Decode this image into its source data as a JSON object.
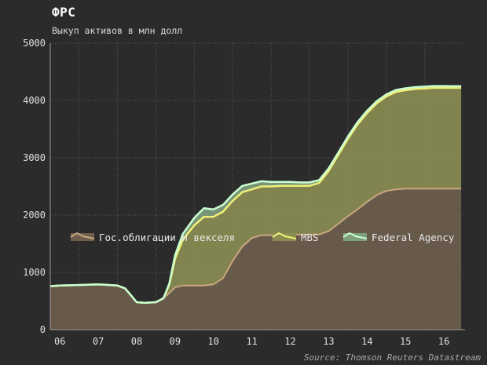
{
  "title": "ФРС",
  "subtitle": "Выкуп активов в млн долл",
  "source": "Source: Thomson Reuters Datastream",
  "colors": {
    "background": "#2b2b2b",
    "treasury_fill": "#6e5e4e",
    "treasury_line": "#c8a67f",
    "mbs_fill": "#8a8c52",
    "mbs_line": "#f0f078",
    "agency_fill": "#7fa07e",
    "agency_line": "#c9ffd0",
    "grid": "#5a5a5a"
  },
  "chart_data": {
    "type": "area",
    "stacked": true,
    "title": "ФРС",
    "subtitle": "Выкуп активов в млн долл",
    "xlim": [
      2005.75,
      2016.55
    ],
    "ylim": [
      0,
      5000
    ],
    "yticks": [
      0,
      1000,
      2000,
      3000,
      4000,
      5000
    ],
    "xticks": [
      {
        "value": 2006.0,
        "label": "06"
      },
      {
        "value": 2007.0,
        "label": "07"
      },
      {
        "value": 2008.0,
        "label": "08"
      },
      {
        "value": 2009.0,
        "label": "09"
      },
      {
        "value": 2010.0,
        "label": "10"
      },
      {
        "value": 2011.0,
        "label": "11"
      },
      {
        "value": 2012.0,
        "label": "12"
      },
      {
        "value": 2013.0,
        "label": "13"
      },
      {
        "value": 2014.0,
        "label": "14"
      },
      {
        "value": 2015.0,
        "label": "15"
      },
      {
        "value": 2016.0,
        "label": "16"
      }
    ],
    "xgrid": [
      2006.5,
      2007.5,
      2008.5,
      2009.5,
      2010.5,
      2011.5,
      2012.5,
      2013.5,
      2014.5,
      2015.5
    ],
    "grid": true,
    "legend_position": "middle",
    "x": [
      2005.75,
      2006.0,
      2006.5,
      2007.0,
      2007.5,
      2007.7,
      2007.85,
      2008.0,
      2008.2,
      2008.5,
      2008.7,
      2008.85,
      2009.0,
      2009.2,
      2009.5,
      2009.75,
      2010.0,
      2010.25,
      2010.5,
      2010.75,
      2011.0,
      2011.25,
      2011.5,
      2011.75,
      2012.0,
      2012.25,
      2012.5,
      2012.75,
      2013.0,
      2013.25,
      2013.5,
      2013.75,
      2014.0,
      2014.25,
      2014.5,
      2014.75,
      2015.0,
      2015.25,
      2015.5,
      2015.75,
      2016.0,
      2016.25,
      2016.45
    ],
    "series": [
      {
        "name": "Гос.облигации и векселя",
        "values": [
          760,
          770,
          780,
          790,
          770,
          720,
          600,
          480,
          470,
          480,
          550,
          640,
          740,
          770,
          770,
          770,
          790,
          900,
          1200,
          1450,
          1600,
          1650,
          1650,
          1660,
          1660,
          1660,
          1660,
          1660,
          1720,
          1850,
          1980,
          2100,
          2230,
          2350,
          2420,
          2450,
          2460,
          2460,
          2460,
          2460,
          2460,
          2460,
          2460
        ]
      },
      {
        "name": "MBS",
        "values": [
          0,
          0,
          0,
          0,
          0,
          0,
          0,
          0,
          0,
          0,
          0,
          150,
          500,
          800,
          1050,
          1200,
          1180,
          1160,
          1050,
          950,
          850,
          850,
          850,
          850,
          850,
          850,
          850,
          900,
          1050,
          1200,
          1350,
          1480,
          1550,
          1600,
          1650,
          1700,
          1720,
          1740,
          1750,
          1760,
          1760,
          1760,
          1760
        ]
      },
      {
        "name": "Federal Agency",
        "values": [
          0,
          0,
          0,
          0,
          0,
          0,
          0,
          0,
          0,
          0,
          0,
          20,
          60,
          100,
          130,
          150,
          130,
          120,
          110,
          110,
          100,
          90,
          80,
          70,
          70,
          60,
          60,
          50,
          45,
          40,
          40,
          40,
          40,
          38,
          36,
          34,
          33,
          33,
          32,
          32,
          32,
          31,
          31
        ]
      }
    ]
  }
}
